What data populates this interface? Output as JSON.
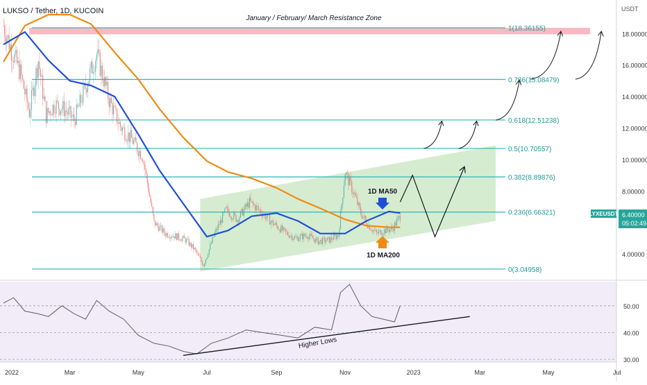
{
  "header": {
    "symbol_title": "LUKSO / Tether, 1D, KUCOIN"
  },
  "axis": {
    "unit_label": "USDT",
    "price_ticks": [
      "4.00000",
      "6.00000",
      "8.00000",
      "10.00000",
      "12.00000",
      "14.00000",
      "16.00000",
      "18.00000"
    ],
    "rsi_ticks": [
      "30.00",
      "40.00",
      "50.00"
    ],
    "time_ticks": [
      "2022",
      "Mar",
      "May",
      "Jul",
      "Sep",
      "Nov",
      "2023",
      "Mar",
      "May",
      "Jul"
    ]
  },
  "price_tag": {
    "symbol": "LYXEUSDT",
    "price": "6.40000",
    "countdown": "05:02:49"
  },
  "annotations": {
    "resistance_zone": "January / February/ March Resistance Zone",
    "ma50_label": "1D MA50",
    "ma200_label": "1D MA200",
    "higher_lows": "Higher Lows"
  },
  "colors": {
    "ma50": "#1e4fd8",
    "ma200": "#f08a12",
    "fib_lines": "#2bb5b5",
    "resistance_zone": "#f4a3ae",
    "channel": "#c8e6c0",
    "rsi_band": "#ede7f6",
    "candle_up": "#26a69a",
    "candle_down": "#ef5350",
    "price_tag": "#26a69a"
  },
  "chart_data": [
    {
      "type": "line",
      "name": "price-panel",
      "title": "LUKSO / Tether, 1D, KUCOIN",
      "y_axis": {
        "scale": "linear",
        "range": [
          2.6,
          19.6
        ],
        "tick_values": [
          4,
          6,
          8,
          10,
          12,
          14,
          16,
          18
        ]
      },
      "fibonacci_levels": [
        {
          "label": "0(3.04958)",
          "value": 3.04958
        },
        {
          "label": "0.236(6.66321)",
          "value": 6.66321
        },
        {
          "label": "0.382(8.89876)",
          "value": 8.89876
        },
        {
          "label": "0.5(10.70557)",
          "value": 10.70557
        },
        {
          "label": "0.618(12.51238)",
          "value": 12.51238
        },
        {
          "label": "0.786(15.08479)",
          "value": 15.08479
        },
        {
          "label": "1(18.36155)",
          "value": 18.36155
        }
      ],
      "resistance_zone": {
        "from": 17.95,
        "to": 18.36155
      },
      "series": [
        {
          "name": "1D MA50",
          "x": [
            "2022-01-01",
            "2022-01-20",
            "2022-02-10",
            "2022-03-01",
            "2022-03-20",
            "2022-04-10",
            "2022-05-01",
            "2022-05-20",
            "2022-06-10",
            "2022-07-01",
            "2022-07-20",
            "2022-08-10",
            "2022-09-01",
            "2022-09-20",
            "2022-10-10",
            "2022-11-01",
            "2022-11-20",
            "2022-12-10",
            "2022-12-20"
          ],
          "values": [
            17.3,
            18.1,
            16.3,
            15.0,
            14.7,
            14.0,
            11.6,
            9.3,
            7.2,
            5.1,
            5.5,
            6.4,
            6.6,
            6.1,
            5.3,
            5.3,
            6.1,
            6.7,
            6.6
          ]
        },
        {
          "name": "1D MA200",
          "x": [
            "2022-01-01",
            "2022-01-20",
            "2022-02-10",
            "2022-03-01",
            "2022-03-20",
            "2022-04-10",
            "2022-05-01",
            "2022-05-20",
            "2022-06-10",
            "2022-07-01",
            "2022-07-20",
            "2022-08-10",
            "2022-09-01",
            "2022-09-20",
            "2022-10-10",
            "2022-11-01",
            "2022-11-20",
            "2022-12-10",
            "2022-12-20"
          ],
          "values": [
            16.2,
            18.5,
            19.2,
            19.2,
            18.6,
            16.8,
            15.1,
            13.2,
            11.4,
            9.9,
            9.2,
            8.8,
            8.2,
            7.5,
            6.9,
            6.2,
            5.8,
            5.7,
            5.7
          ]
        },
        {
          "name": "price",
          "x": [
            "2022-01-01",
            "2022-01-08",
            "2022-01-16",
            "2022-01-24",
            "2022-02-01",
            "2022-02-08",
            "2022-02-16",
            "2022-02-24",
            "2022-03-05",
            "2022-03-15",
            "2022-03-25",
            "2022-04-05",
            "2022-04-15",
            "2022-04-25",
            "2022-05-05",
            "2022-05-15",
            "2022-05-25",
            "2022-06-05",
            "2022-06-12",
            "2022-06-20",
            "2022-06-28",
            "2022-07-08",
            "2022-07-18",
            "2022-07-28",
            "2022-08-08",
            "2022-08-18",
            "2022-08-28",
            "2022-09-08",
            "2022-09-18",
            "2022-09-28",
            "2022-10-08",
            "2022-10-18",
            "2022-10-26",
            "2022-11-01",
            "2022-11-08",
            "2022-11-15",
            "2022-11-22",
            "2022-11-29",
            "2022-12-06",
            "2022-12-13",
            "2022-12-20"
          ],
          "values": [
            18.5,
            17.0,
            15.5,
            13.0,
            16.3,
            12.8,
            13.5,
            13.2,
            12.5,
            14.6,
            16.7,
            13.8,
            12.1,
            11.3,
            10.2,
            6.0,
            5.3,
            5.1,
            4.9,
            4.3,
            3.3,
            5.3,
            6.8,
            6.2,
            7.3,
            6.7,
            6.0,
            5.4,
            5.0,
            5.2,
            4.8,
            4.9,
            5.2,
            9.2,
            8.0,
            6.6,
            5.8,
            5.3,
            5.5,
            5.6,
            6.4
          ]
        }
      ],
      "projections": {
        "zigzag": {
          "x": [
            "2022-12-20",
            "2022-12-31",
            "2023-01-20",
            "2023-02-15"
          ],
          "values": [
            7.3,
            9.0,
            5.1,
            9.5
          ]
        },
        "arrows": [
          {
            "x": [
              "2023-01-10",
              "2023-01-26"
            ],
            "values": [
              10.7,
              12.4
            ]
          },
          {
            "x": [
              "2023-02-10",
              "2023-02-26"
            ],
            "values": [
              10.7,
              12.4
            ]
          },
          {
            "x": [
              "2023-03-15",
              "2023-04-05"
            ],
            "values": [
              12.5,
              15.0
            ]
          },
          {
            "x": [
              "2023-04-15",
              "2023-05-12"
            ],
            "values": [
              15.1,
              18.1
            ]
          },
          {
            "x": [
              "2023-05-25",
              "2023-06-17"
            ],
            "values": [
              15.1,
              18.1
            ]
          }
        ]
      },
      "rising_channel": {
        "x": [
          "2022-06-25",
          "2023-03-15"
        ],
        "lower": [
          2.9,
          6.1
        ],
        "upper": [
          7.5,
          10.9
        ]
      }
    },
    {
      "type": "line",
      "name": "rsi-panel",
      "ylim": [
        29,
        59
      ],
      "ticks": [
        30,
        40,
        50
      ],
      "series": [
        {
          "name": "RSI",
          "x": [
            "2022-01-01",
            "2022-01-10",
            "2022-01-20",
            "2022-02-01",
            "2022-02-10",
            "2022-02-22",
            "2022-03-05",
            "2022-03-15",
            "2022-03-25",
            "2022-04-05",
            "2022-04-18",
            "2022-05-01",
            "2022-05-15",
            "2022-05-28",
            "2022-06-10",
            "2022-06-22",
            "2022-07-05",
            "2022-07-20",
            "2022-08-05",
            "2022-08-20",
            "2022-09-05",
            "2022-09-20",
            "2022-10-05",
            "2022-10-20",
            "2022-10-28",
            "2022-11-05",
            "2022-11-15",
            "2022-11-25",
            "2022-12-05",
            "2022-12-15",
            "2022-12-20"
          ],
          "values": [
            51,
            53,
            48,
            47,
            46,
            50,
            47,
            45,
            52,
            48,
            45,
            39,
            36,
            35,
            33,
            32,
            36,
            38,
            41,
            40,
            39,
            38,
            42,
            41,
            55,
            58,
            50,
            46,
            45,
            44,
            50
          ]
        }
      ],
      "trendline": {
        "label": "Higher Lows",
        "x": [
          "2022-06-10",
          "2023-02-20"
        ],
        "values": [
          31.5,
          46
        ]
      }
    }
  ]
}
